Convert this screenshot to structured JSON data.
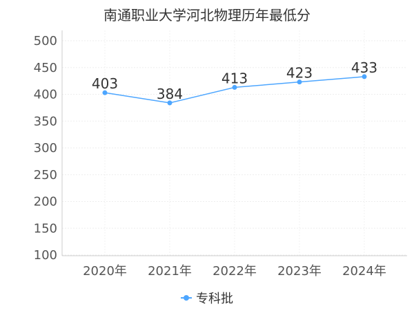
{
  "chart_data": {
    "type": "line",
    "title": "南通职业大学河北物理历年最低分",
    "categories": [
      "2020年",
      "2021年",
      "2022年",
      "2023年",
      "2024年"
    ],
    "series": [
      {
        "name": "专科批",
        "values": [
          403,
          384,
          413,
          423,
          433
        ],
        "color": "#4da6ff"
      }
    ],
    "ylim": [
      100,
      500
    ],
    "yticks": [
      100,
      150,
      200,
      250,
      300,
      350,
      400,
      450,
      500
    ],
    "grid": true,
    "legend_position": "bottom-center",
    "data_labels": true
  }
}
